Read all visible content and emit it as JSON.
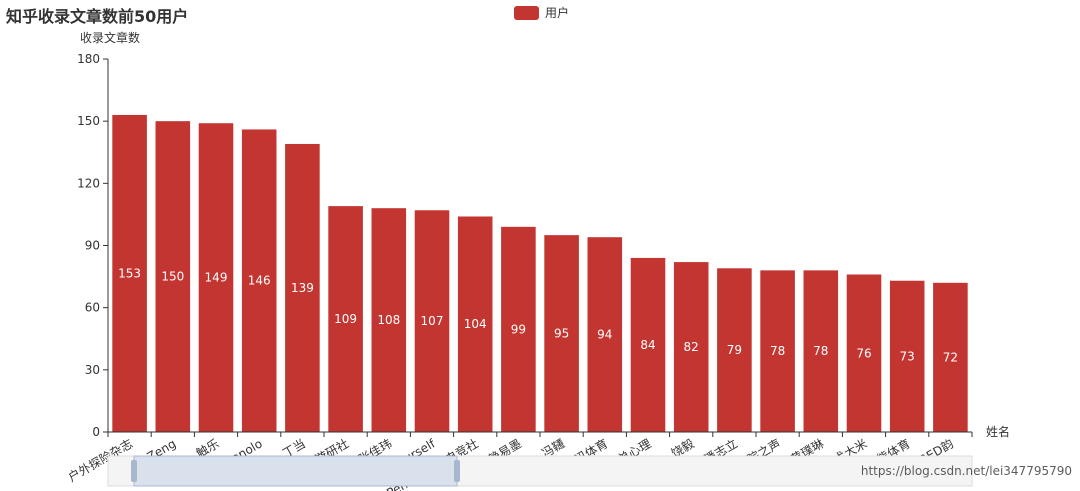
{
  "chart_data": {
    "type": "bar",
    "title": "知乎收录文章数前50用户",
    "ylabel": "收录文章数",
    "xlabel": "姓名",
    "ylim": [
      0,
      180
    ],
    "yticks": [
      0,
      30,
      60,
      90,
      120,
      150,
      180
    ],
    "legend": "top-center",
    "grid": false,
    "color": "#c23531",
    "series": [
      {
        "name": "用户",
        "values": [
          153,
          150,
          149,
          146,
          139,
          109,
          108,
          107,
          104,
          99,
          95,
          94,
          84,
          82,
          79,
          78,
          78,
          76,
          73,
          72
        ]
      }
    ],
    "categories": [
      "户外探险杂志",
      "Bad Zeng",
      "触乐",
      "Manolo",
      "丁当",
      "游研社",
      "张佳玮",
      "KnowYourself",
      "PentaQ制霸电竞社",
      "静易墨",
      "冯韆",
      "腾讯体育",
      "简单心理",
      "饶毅",
      "潘志立",
      "中科院之声",
      "黄璞琳",
      "战术大米",
      "懒熊体育",
      "RED韵"
    ]
  },
  "watermark": "https://blog.csdn.net/lei347795790"
}
